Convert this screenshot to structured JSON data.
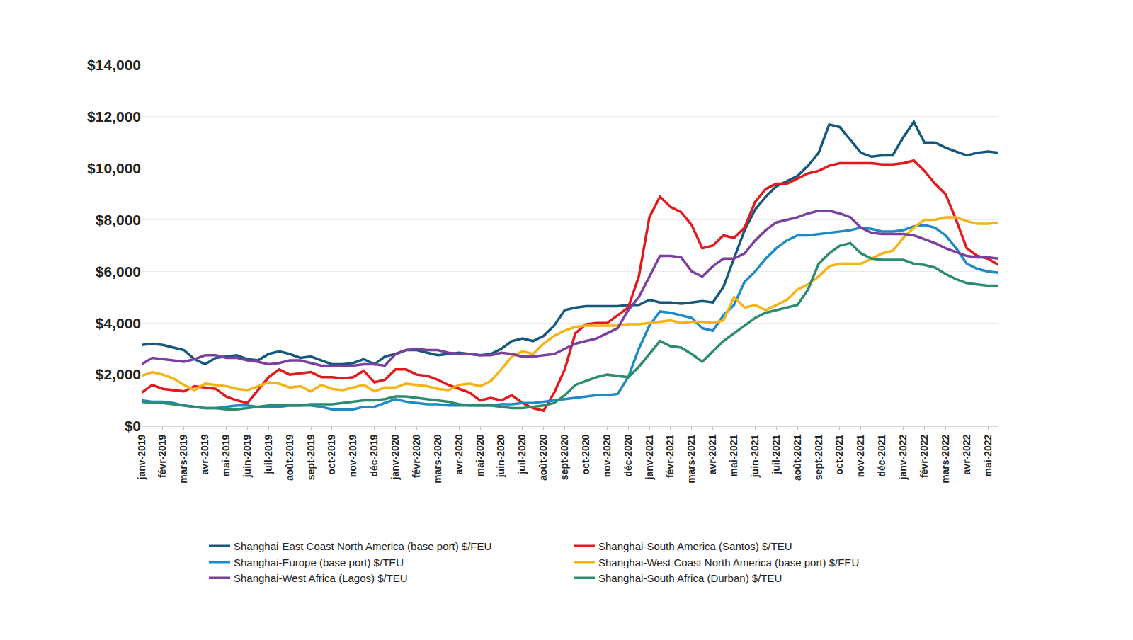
{
  "chart_data": {
    "type": "line",
    "categories": [
      "janv-2019",
      null,
      "févr-2019",
      null,
      "mars-2019",
      null,
      "avr-2019",
      null,
      "mai-2019",
      null,
      "juin-2019",
      null,
      "juil-2019",
      null,
      "août-2019",
      null,
      "sept-2019",
      null,
      "oct-2019",
      null,
      "nov-2019",
      null,
      "déc-2019",
      null,
      "janv-2020",
      null,
      "févr-2020",
      null,
      "mars-2020",
      null,
      "avr-2020",
      null,
      "mai-2020",
      null,
      "juin-2020",
      null,
      "juil-2020",
      null,
      "août-2020",
      null,
      "sept-2020",
      null,
      "oct-2020",
      null,
      "nov-2020",
      null,
      "déc-2020",
      null,
      "janv-2021",
      null,
      "févr-2021",
      null,
      "mars-2021",
      null,
      "avr-2021",
      null,
      "mai-2021",
      null,
      "juin-2021",
      null,
      "juil-2021",
      null,
      "août-2021",
      null,
      "sept-2021",
      null,
      "oct-2021",
      null,
      "nov-2021",
      null,
      "déc-2021",
      null,
      "janv-2022",
      null,
      "févr-2022",
      null,
      "mars-2022",
      null,
      "avr-2022",
      null,
      "mai-2022",
      null
    ],
    "series": [
      {
        "name": "Shanghai-East Coast North America (base port) $/FEU",
        "color": "#14587d",
        "values": [
          3150,
          3200,
          3150,
          3050,
          2950,
          2600,
          2400,
          2650,
          2700,
          2750,
          2600,
          2550,
          2800,
          2900,
          2800,
          2650,
          2700,
          2550,
          2400,
          2400,
          2450,
          2600,
          2400,
          2700,
          2800,
          2950,
          2950,
          2850,
          2750,
          2800,
          2850,
          2800,
          2750,
          2800,
          3000,
          3300,
          3400,
          3300,
          3500,
          3900,
          4500,
          4600,
          4650,
          4650,
          4650,
          4650,
          4700,
          4700,
          4900,
          4800,
          4800,
          4750,
          4800,
          4850,
          4800,
          5400,
          6500,
          7600,
          8400,
          8900,
          9300,
          9500,
          9700,
          10100,
          10600,
          11700,
          11600,
          11100,
          10600,
          10450,
          10500,
          10500,
          11200,
          11800,
          11000,
          11000,
          10800,
          10650,
          10500,
          10600,
          10650,
          10600
        ]
      },
      {
        "name": "Shanghai-South America (Santos) $/TEU",
        "color": "#e3191c",
        "values": [
          1300,
          1600,
          1450,
          1400,
          1350,
          1550,
          1500,
          1450,
          1150,
          1000,
          900,
          1400,
          1900,
          2200,
          2000,
          2050,
          2100,
          1900,
          1900,
          1850,
          1900,
          2150,
          1700,
          1800,
          2200,
          2200,
          2000,
          1950,
          1800,
          1600,
          1450,
          1300,
          1000,
          1100,
          1000,
          1200,
          900,
          700,
          600,
          1300,
          2200,
          3600,
          3950,
          4000,
          4000,
          4300,
          4600,
          5800,
          8100,
          8900,
          8500,
          8300,
          7800,
          6900,
          7000,
          7400,
          7300,
          7700,
          8700,
          9200,
          9400,
          9400,
          9600,
          9800,
          9900,
          10100,
          10200,
          10200,
          10200,
          10200,
          10150,
          10150,
          10200,
          10300,
          9900,
          9400,
          9000,
          8000,
          6900,
          6600,
          6500,
          6250
        ]
      },
      {
        "name": "Shanghai-Europe (base port) $/TEU",
        "color": "#1d8ac7",
        "values": [
          1000,
          950,
          950,
          900,
          800,
          750,
          700,
          700,
          750,
          800,
          800,
          750,
          750,
          750,
          800,
          800,
          800,
          750,
          650,
          650,
          650,
          750,
          750,
          900,
          1050,
          950,
          900,
          850,
          850,
          800,
          800,
          800,
          800,
          800,
          850,
          850,
          900,
          900,
          950,
          1000,
          1050,
          1100,
          1150,
          1200,
          1200,
          1250,
          1900,
          3000,
          3900,
          4450,
          4400,
          4300,
          4200,
          3800,
          3700,
          4300,
          4700,
          5600,
          6000,
          6500,
          6900,
          7200,
          7400,
          7400,
          7450,
          7500,
          7550,
          7600,
          7700,
          7650,
          7550,
          7550,
          7600,
          7750,
          7800,
          7700,
          7400,
          6900,
          6300,
          6100,
          6000,
          5950
        ]
      },
      {
        "name": "Shanghai-West Coast North America (base port) $/FEU",
        "color": "#f5b315",
        "values": [
          1950,
          2100,
          2000,
          1850,
          1600,
          1400,
          1650,
          1600,
          1550,
          1450,
          1400,
          1550,
          1700,
          1650,
          1500,
          1550,
          1350,
          1600,
          1450,
          1400,
          1500,
          1600,
          1350,
          1500,
          1500,
          1650,
          1600,
          1550,
          1450,
          1400,
          1600,
          1650,
          1550,
          1750,
          2200,
          2700,
          2900,
          2800,
          3200,
          3500,
          3700,
          3850,
          3900,
          3900,
          3900,
          3900,
          3950,
          3950,
          4000,
          4050,
          4100,
          4000,
          4050,
          4050,
          4000,
          4100,
          5000,
          4600,
          4700,
          4500,
          4700,
          4900,
          5300,
          5500,
          5800,
          6200,
          6300,
          6300,
          6300,
          6500,
          6700,
          6800,
          7300,
          7700,
          8000,
          8000,
          8100,
          8100,
          7950,
          7850,
          7850,
          7900
        ]
      },
      {
        "name": "Shanghai-West Africa (Lagos) $/TEU",
        "color": "#7b3f9e",
        "values": [
          2400,
          2650,
          2600,
          2550,
          2500,
          2600,
          2750,
          2750,
          2650,
          2650,
          2550,
          2500,
          2400,
          2450,
          2550,
          2550,
          2450,
          2350,
          2350,
          2350,
          2350,
          2400,
          2400,
          2350,
          2800,
          2950,
          3000,
          2950,
          2950,
          2850,
          2800,
          2800,
          2750,
          2750,
          2850,
          2800,
          2700,
          2700,
          2750,
          2800,
          3000,
          3200,
          3300,
          3400,
          3600,
          3800,
          4500,
          5000,
          5800,
          6600,
          6600,
          6550,
          6000,
          5800,
          6200,
          6500,
          6500,
          6700,
          7200,
          7600,
          7900,
          8000,
          8100,
          8250,
          8350,
          8350,
          8250,
          8100,
          7700,
          7500,
          7450,
          7450,
          7450,
          7400,
          7250,
          7100,
          6900,
          6750,
          6600,
          6550,
          6550,
          6500
        ]
      },
      {
        "name": "Shanghai-South Africa (Durban) $/TEU",
        "color": "#2b8c6e",
        "values": [
          950,
          900,
          900,
          850,
          800,
          750,
          700,
          700,
          650,
          650,
          700,
          750,
          800,
          800,
          800,
          800,
          850,
          850,
          850,
          900,
          950,
          1000,
          1000,
          1050,
          1150,
          1150,
          1100,
          1050,
          1000,
          950,
          850,
          800,
          800,
          800,
          750,
          700,
          700,
          750,
          800,
          900,
          1200,
          1600,
          1750,
          1900,
          2000,
          1950,
          1900,
          2300,
          2800,
          3300,
          3100,
          3050,
          2800,
          2500,
          2900,
          3300,
          3600,
          3900,
          4200,
          4400,
          4500,
          4600,
          4700,
          5300,
          6300,
          6700,
          7000,
          7100,
          6700,
          6500,
          6450,
          6450,
          6450,
          6300,
          6250,
          6150,
          5900,
          5700,
          5550,
          5500,
          5450,
          5450
        ]
      }
    ],
    "ylim": [
      0,
      14000
    ],
    "yticks": [
      {
        "value": 0,
        "label": "$0"
      },
      {
        "value": 2000,
        "label": "$2,000"
      },
      {
        "value": 4000,
        "label": "$4,000"
      },
      {
        "value": 6000,
        "label": "$6,000"
      },
      {
        "value": 8000,
        "label": "$8,000"
      },
      {
        "value": 10000,
        "label": "$10,000"
      },
      {
        "value": 12000,
        "label": "$12,000"
      },
      {
        "value": 14000,
        "label": "$14,000"
      }
    ],
    "grid": true,
    "legend": "bottom"
  }
}
